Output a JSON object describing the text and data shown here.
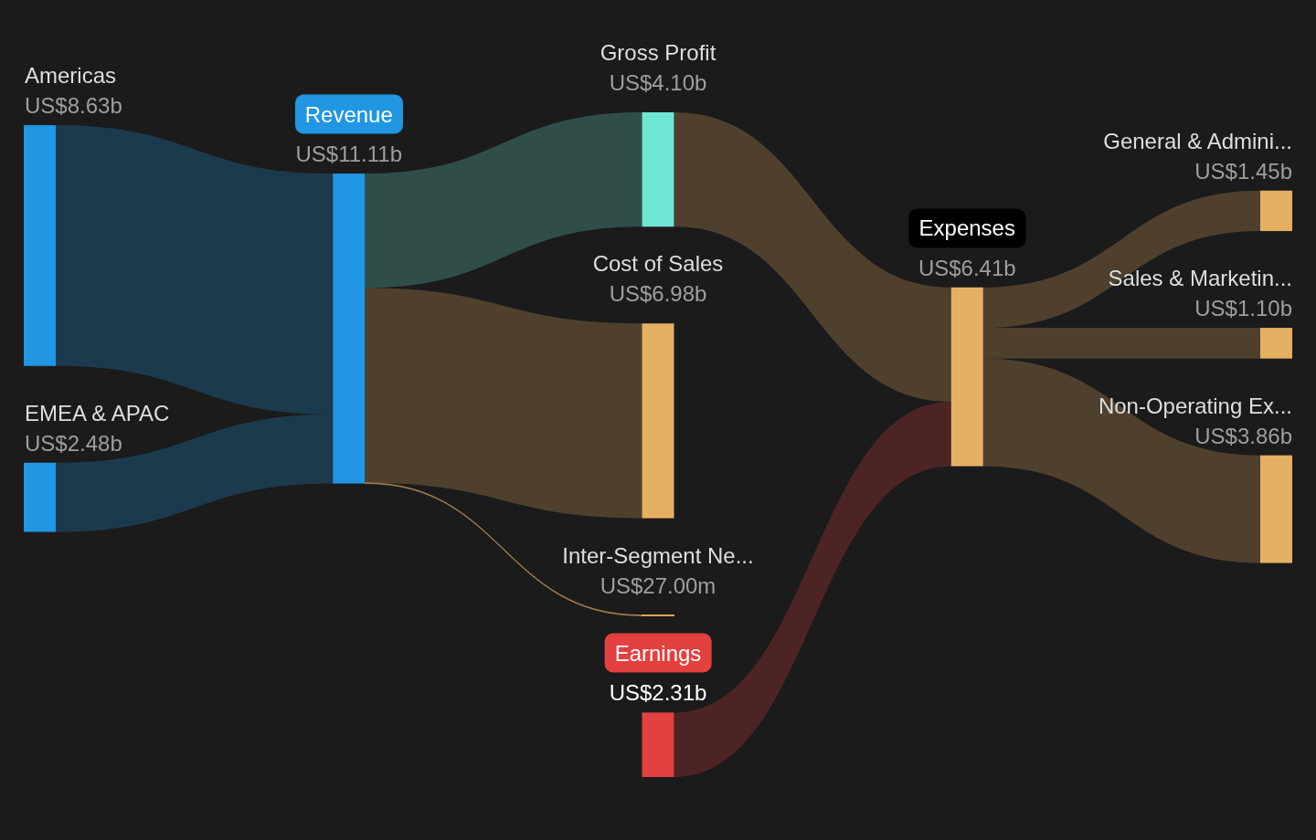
{
  "chart_data": {
    "type": "other",
    "categories": [
      "Americas",
      "EMEA & APAC",
      "Revenue",
      "Gross Profit",
      "Cost of Sales",
      "Inter-Segment Ne...",
      "Earnings",
      "Expenses",
      "General & Admini...",
      "Sales & Marketin...",
      "Non-Operating Ex..."
    ],
    "values": [
      8630000000,
      2480000000,
      11110000000,
      4100000000,
      6980000000,
      27000000,
      2310000000,
      6410000000,
      1450000000,
      1100000000,
      3860000000
    ],
    "value_labels": [
      "US$8.63b",
      "US$2.48b",
      "US$11.11b",
      "US$4.10b",
      "US$6.98b",
      "US$27.00m",
      "US$2.31b",
      "US$6.41b",
      "US$1.45b",
      "US$1.10b",
      "US$3.86b"
    ],
    "colors": [
      "#2196e3",
      "#2196e3",
      "#2196e3",
      "#6ee6d4",
      "#e6b063",
      "#e6b063",
      "#e34040",
      "#e6b063",
      "#e6b063",
      "#e6b063",
      "#e6b063"
    ],
    "cells": [
      [
        null,
        null,
        true,
        null,
        null,
        null,
        null,
        null,
        null,
        null,
        null
      ],
      [
        null,
        null,
        true,
        null,
        null,
        null,
        null,
        null,
        null,
        null,
        null
      ],
      [
        null,
        null,
        null,
        true,
        true,
        true,
        null,
        null,
        null,
        null,
        null
      ],
      [
        null,
        null,
        null,
        null,
        null,
        null,
        null,
        true,
        null,
        null,
        null
      ],
      [
        null,
        null,
        null,
        null,
        null,
        null,
        null,
        null,
        null,
        null,
        null
      ],
      [
        null,
        null,
        null,
        null,
        null,
        null,
        null,
        null,
        null,
        null,
        null
      ],
      [
        null,
        null,
        null,
        null,
        null,
        null,
        null,
        true,
        null,
        null,
        null
      ],
      [
        null,
        null,
        null,
        null,
        null,
        null,
        null,
        null,
        true,
        true,
        true
      ],
      [
        null,
        null,
        null,
        null,
        null,
        null,
        null,
        null,
        null,
        null,
        null
      ],
      [
        null,
        null,
        null,
        null,
        null,
        null,
        null,
        null,
        null,
        null,
        null
      ],
      [
        null,
        null,
        null,
        null,
        null,
        null,
        null,
        null,
        null,
        null,
        null
      ]
    ]
  }
}
